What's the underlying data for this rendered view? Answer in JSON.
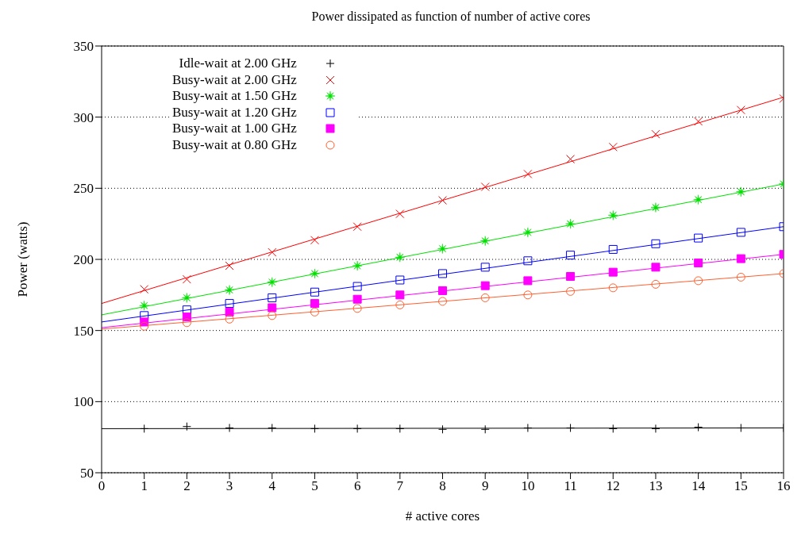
{
  "chart_data": {
    "type": "scatter",
    "title": "Power dissipated as function of number of active cores",
    "xlabel": "# active cores",
    "ylabel": "Power (watts)",
    "xlim": [
      0,
      16
    ],
    "xticks": [
      0,
      1,
      2,
      3,
      4,
      5,
      6,
      7,
      8,
      9,
      10,
      11,
      12,
      13,
      14,
      15,
      16
    ],
    "ylim": [
      50,
      350
    ],
    "yticks": [
      50,
      100,
      150,
      200,
      250,
      300,
      350
    ],
    "grid": "y",
    "legend": "top left",
    "series": [
      {
        "name": "Idle-wait at 2.00 GHz",
        "color": "#000000",
        "marker": "cross",
        "x": [
          1,
          2,
          3,
          4,
          5,
          6,
          7,
          8,
          9,
          10,
          11,
          12,
          13,
          14,
          15,
          16
        ],
        "values": [
          81,
          82.5,
          81.5,
          81.5,
          81,
          81,
          81,
          80.5,
          80.5,
          81.5,
          81.5,
          81,
          81,
          82,
          81.5,
          81.5
        ]
      },
      {
        "name": "Busy-wait at 2.00 GHz",
        "color": "#ff0000",
        "marker": "cross",
        "x": [
          1,
          2,
          3,
          4,
          5,
          6,
          7,
          8,
          9,
          10,
          11,
          12,
          13,
          14,
          15,
          16
        ],
        "values": [
          179,
          186,
          195.5,
          205,
          213.5,
          223,
          232,
          241.5,
          251,
          260,
          270.5,
          279,
          288,
          297,
          305,
          313
        ]
      },
      {
        "name": "Busy-wait at 1.50 GHz",
        "color": "#00e000",
        "marker": "star",
        "x": [
          1,
          2,
          3,
          4,
          5,
          6,
          7,
          8,
          9,
          10,
          11,
          12,
          13,
          14,
          15,
          16
        ],
        "values": [
          167.5,
          173,
          178.5,
          184,
          190,
          195.5,
          201.5,
          207.5,
          213,
          219,
          225,
          231,
          236.5,
          242,
          247.5,
          253
        ]
      },
      {
        "name": "Busy-wait at 1.20 GHz",
        "color": "#0000ff",
        "marker": "square",
        "x": [
          1,
          2,
          3,
          4,
          5,
          6,
          7,
          8,
          9,
          10,
          11,
          12,
          13,
          14,
          15,
          16
        ],
        "values": [
          160.5,
          164.5,
          169,
          173,
          177,
          181,
          185.5,
          190,
          194.5,
          199,
          203,
          207,
          211,
          215,
          219,
          223
        ]
      },
      {
        "name": "Busy-wait at 1.00 GHz",
        "color": "#ff00ff",
        "marker": "square",
        "x": [
          1,
          2,
          3,
          4,
          5,
          6,
          7,
          8,
          9,
          10,
          11,
          12,
          13,
          14,
          15,
          16
        ],
        "values": [
          156,
          159.5,
          163,
          166,
          169,
          172,
          175,
          178,
          181.5,
          185,
          188,
          191,
          194.5,
          197.5,
          200.5,
          203.5
        ]
      },
      {
        "name": "Busy-wait at 0.80 GHz",
        "color": "#ff6030",
        "marker": "circle",
        "x": [
          1,
          2,
          3,
          4,
          5,
          6,
          7,
          8,
          9,
          10,
          11,
          12,
          13,
          14,
          15,
          16
        ],
        "values": [
          153,
          155.5,
          158,
          160.5,
          163,
          165.5,
          168,
          170.5,
          173,
          175,
          177.5,
          180,
          182.5,
          185,
          187.5,
          190
        ]
      },
      {
        "type": "line",
        "color": "#000000",
        "marker": "none",
        "x": [
          0,
          16
        ],
        "values": [
          81,
          81.5
        ]
      },
      {
        "type": "line",
        "color": "#ff0000",
        "marker": "none",
        "x": [
          0,
          16
        ],
        "values": [
          169,
          314
        ]
      },
      {
        "type": "line",
        "color": "#00e000",
        "marker": "none",
        "x": [
          0,
          16
        ],
        "values": [
          161,
          253
        ]
      },
      {
        "type": "line",
        "color": "#0000ff",
        "marker": "none",
        "x": [
          0,
          16
        ],
        "values": [
          156,
          223
        ]
      },
      {
        "type": "line",
        "color": "#ff00ff",
        "marker": "none",
        "x": [
          0,
          16
        ],
        "values": [
          152,
          203.5
        ]
      },
      {
        "type": "line",
        "color": "#ff6030",
        "marker": "none",
        "x": [
          0,
          16
        ],
        "values": [
          151,
          190
        ]
      }
    ]
  }
}
